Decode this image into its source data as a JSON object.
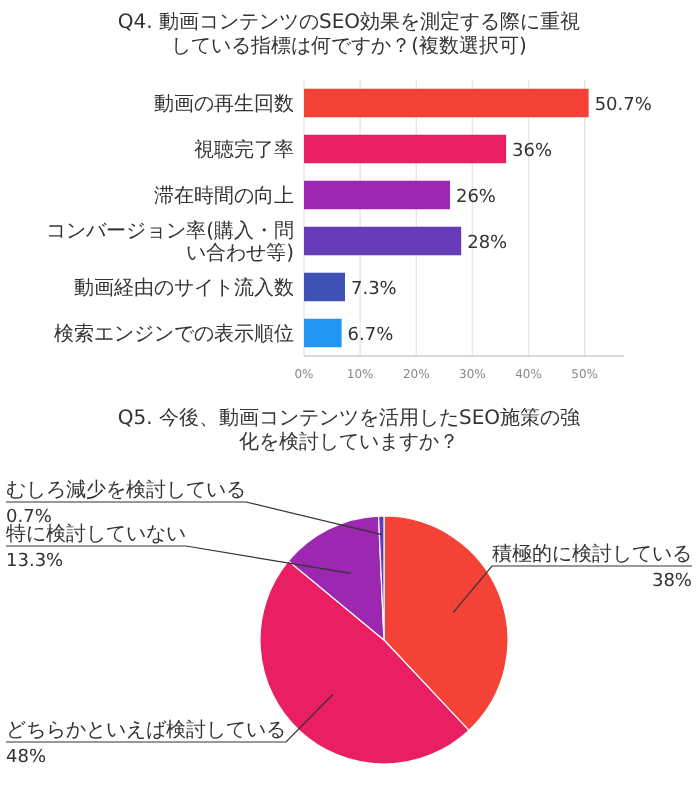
{
  "chart_data": [
    {
      "type": "bar",
      "orientation": "horizontal",
      "title": "Q4. 動画コンテンツのSEO効果を測定する際に重視している指標は何ですか？(複数選択可)",
      "categories": [
        "動画の再生回数",
        "視聴完了率",
        "滞在時間の向上",
        "コンバージョン率(購入・問い合わせ等)",
        "動画経由のサイト流入数",
        "検索エンジンでの表示順位"
      ],
      "values": [
        50.7,
        36,
        26,
        28,
        7.3,
        6.7
      ],
      "value_labels": [
        "50.7%",
        "36%",
        "26%",
        "28%",
        "7.3%",
        "6.7%"
      ],
      "colors": [
        "#f44336",
        "#e91e63",
        "#9c27b0",
        "#673ab7",
        "#3f51b5",
        "#2196f3"
      ],
      "xlim": [
        0,
        57
      ],
      "xticks": [
        {
          "value": 0,
          "label": "0%"
        },
        {
          "value": 10,
          "label": "10%"
        },
        {
          "value": 20,
          "label": "20%"
        },
        {
          "value": 30,
          "label": "30%"
        },
        {
          "value": 40,
          "label": "40%"
        },
        {
          "value": 50,
          "label": "50%"
        }
      ],
      "grid": "x"
    },
    {
      "type": "pie",
      "title": "Q5. 今後、動画コンテンツを活用したSEO施策の強化を検討していますか？",
      "categories": [
        "積極的に検討している",
        "どちらかといえば検討している",
        "特に検討していない",
        "むしろ減少を検討している"
      ],
      "values": [
        38,
        48,
        13.3,
        0.7
      ],
      "value_labels": [
        "38%",
        "48%",
        "13.3%",
        "0.7%"
      ],
      "colors": [
        "#f44336",
        "#e91e63",
        "#9c27b0",
        "#673ab7"
      ]
    }
  ]
}
